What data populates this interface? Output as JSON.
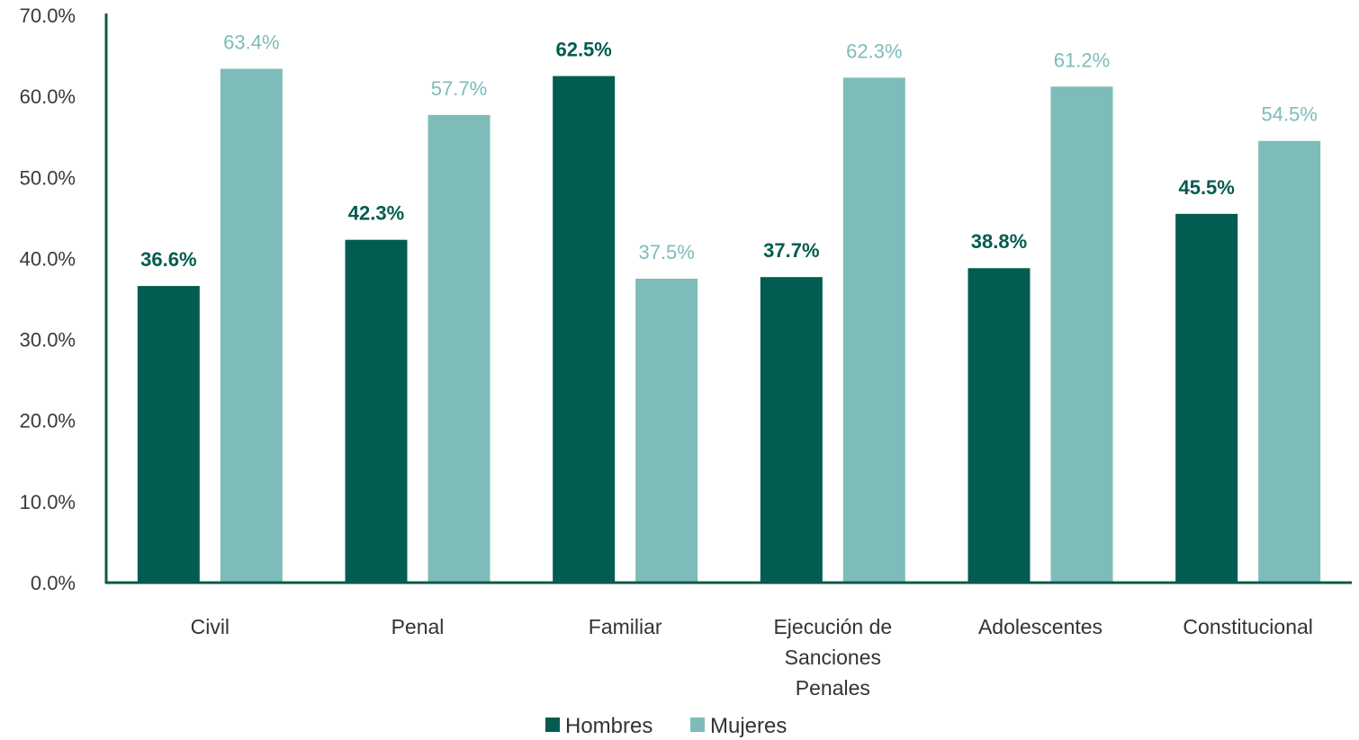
{
  "chart_data": {
    "type": "bar",
    "categories": [
      [
        "Civil"
      ],
      [
        "Penal"
      ],
      [
        "Familiar"
      ],
      [
        "Ejecución de",
        "Sanciones",
        "Penales"
      ],
      [
        "Adolescentes"
      ],
      [
        "Constitucional"
      ]
    ],
    "series": [
      {
        "name": "Hombres",
        "values": [
          36.6,
          42.3,
          62.5,
          37.7,
          38.8,
          45.5
        ],
        "labels": [
          "36.6%",
          "42.3%",
          "62.5%",
          "37.7%",
          "38.8%",
          "45.5%"
        ],
        "color": "#025c50",
        "label_bold": true
      },
      {
        "name": "Mujeres",
        "values": [
          63.4,
          57.7,
          37.5,
          62.3,
          61.2,
          54.5
        ],
        "labels": [
          "63.4%",
          "57.7%",
          "37.5%",
          "62.3%",
          "61.2%",
          "54.5%"
        ],
        "color": "#7dbcb9",
        "label_bold": false
      }
    ],
    "y_ticks": [
      "0.0%",
      "10.0%",
      "20.0%",
      "30.0%",
      "40.0%",
      "50.0%",
      "60.0%",
      "70.0%"
    ],
    "ylim": [
      0,
      70
    ],
    "grid": false,
    "legend_position": "bottom-center",
    "axis_color": "#0b5a4a"
  }
}
